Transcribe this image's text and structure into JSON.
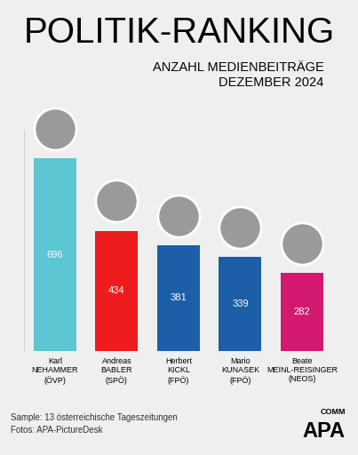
{
  "chart_data": {
    "type": "bar",
    "title": "POLITIK-RANKING",
    "subtitle": "ANZAHL MEDIENBEITRÄGE\nDEZEMBER 2024",
    "categories": [
      "Karl\nNEHAMMER\n(ÖVP)",
      "Andreas\nBABLER\n(SPÖ)",
      "Herbert\nKICKL\n(FPÖ)",
      "Mario\nKUNASEK\n(FPÖ)",
      "Beate\nMEINL-REISINGER\n(NEOS)"
    ],
    "values": [
      696,
      434,
      381,
      339,
      282
    ],
    "colors": [
      "#5cc6d3",
      "#ee1c1c",
      "#1d5ea8",
      "#1d5ea8",
      "#d3186f"
    ],
    "ylim": [
      0,
      800
    ],
    "yticks": [],
    "grid": false,
    "data_labels": true,
    "tick_labels": "x",
    "notes": [
      "Sample: 13 österreichische Tageszeitungen",
      "Fotos: APA-PictureDesk"
    ],
    "logo": {
      "text": "APA",
      "subtext": "COMM"
    }
  }
}
